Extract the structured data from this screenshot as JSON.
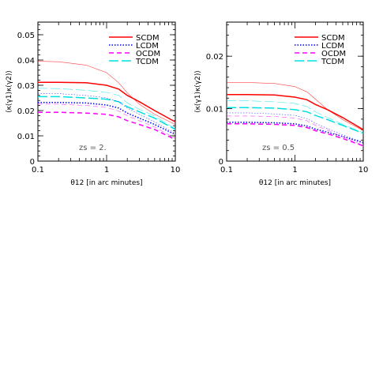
{
  "legend_entries": [
    {
      "label": "SCDM",
      "color": "#ff0000",
      "dash": "solid"
    },
    {
      "label": "LCDM",
      "color": "#0000ff",
      "dash": "dotted"
    },
    {
      "label": "OCDM",
      "color": "#ff00ff",
      "dash": "dashed"
    },
    {
      "label": "TCDM",
      "color": "#00e0e0",
      "dash": "longdash"
    }
  ],
  "chart_data": [
    {
      "type": "line",
      "xscale": "log",
      "xlim": [
        0.1,
        10
      ],
      "ylim": [
        0,
        0.055
      ],
      "xticks": [
        "0.1",
        "1",
        "10"
      ],
      "yticks": [
        "0",
        "0.01",
        "0.02",
        "0.03",
        "0.04",
        "0.05"
      ],
      "xlabel": "θ12 [in arc minutes]",
      "ylabel": "⟨κ(γ1)κ(γ2)⟩",
      "annotation": "zs = 2.",
      "x": [
        0.1,
        0.2,
        0.5,
        1,
        1.5,
        2,
        3,
        5,
        10
      ],
      "series": [
        {
          "name": "SCDM",
          "style": "thick",
          "values": [
            0.0312,
            0.0312,
            0.031,
            0.03,
            0.0285,
            0.026,
            0.0235,
            0.02,
            0.0155
          ]
        },
        {
          "name": "LCDM",
          "style": "thick",
          "values": [
            0.0232,
            0.0232,
            0.023,
            0.0222,
            0.021,
            0.019,
            0.017,
            0.0145,
            0.0105
          ]
        },
        {
          "name": "OCDM",
          "style": "thick",
          "values": [
            0.0193,
            0.0193,
            0.019,
            0.0185,
            0.0175,
            0.016,
            0.0145,
            0.0125,
            0.0085
          ]
        },
        {
          "name": "TCDM",
          "style": "thick",
          "values": [
            0.0255,
            0.0255,
            0.025,
            0.0245,
            0.0235,
            0.0215,
            0.0195,
            0.017,
            0.0125
          ]
        },
        {
          "name": "SCDM",
          "style": "thin",
          "values": [
            0.0395,
            0.0393,
            0.038,
            0.035,
            0.031,
            0.027,
            0.0225,
            0.0185,
            0.0145
          ]
        },
        {
          "name": "LCDM",
          "style": "thin",
          "values": [
            0.0268,
            0.0267,
            0.026,
            0.025,
            0.0235,
            0.021,
            0.0185,
            0.0155,
            0.011
          ]
        },
        {
          "name": "OCDM",
          "style": "thin",
          "values": [
            0.0226,
            0.0225,
            0.022,
            0.0212,
            0.0198,
            0.018,
            0.016,
            0.0135,
            0.009
          ]
        },
        {
          "name": "TCDM",
          "style": "thin",
          "values": [
            0.0288,
            0.0287,
            0.028,
            0.0272,
            0.026,
            0.023,
            0.0205,
            0.0178,
            0.0128
          ]
        }
      ]
    },
    {
      "type": "line",
      "xscale": "log",
      "xlim": [
        0.1,
        10
      ],
      "ylim": [
        0,
        0.0265
      ],
      "xticks": [
        "0.1",
        "1",
        "10"
      ],
      "yticks": [
        "0",
        "0.01",
        "0.02"
      ],
      "xlabel": "θ12 [in arc minutes]",
      "ylabel": "⟨κ(γ1)κ(γ2)⟩",
      "annotation": "zs = 0.5",
      "x": [
        0.1,
        0.2,
        0.5,
        1,
        1.5,
        2,
        3,
        5,
        10
      ],
      "series": [
        {
          "name": "SCDM",
          "style": "thick",
          "values": [
            0.0127,
            0.0127,
            0.0126,
            0.0122,
            0.0117,
            0.0108,
            0.0098,
            0.0083,
            0.006
          ]
        },
        {
          "name": "LCDM",
          "style": "thick",
          "values": [
            0.0074,
            0.0074,
            0.0073,
            0.0071,
            0.0067,
            0.0061,
            0.0055,
            0.0047,
            0.0035
          ]
        },
        {
          "name": "OCDM",
          "style": "thick",
          "values": [
            0.0071,
            0.0071,
            0.007,
            0.0068,
            0.0064,
            0.0058,
            0.0052,
            0.0043,
            0.0029
          ]
        },
        {
          "name": "TCDM",
          "style": "thick",
          "values": [
            0.0102,
            0.0102,
            0.0101,
            0.0098,
            0.0094,
            0.0087,
            0.0079,
            0.0068,
            0.0053
          ]
        },
        {
          "name": "SCDM",
          "style": "thin",
          "values": [
            0.015,
            0.015,
            0.0148,
            0.0142,
            0.0132,
            0.0118,
            0.0098,
            0.0079,
            0.0058
          ]
        },
        {
          "name": "LCDM",
          "style": "thin",
          "values": [
            0.0092,
            0.0092,
            0.009,
            0.0087,
            0.0081,
            0.0072,
            0.0062,
            0.005,
            0.0036
          ]
        },
        {
          "name": "OCDM",
          "style": "thin",
          "values": [
            0.0086,
            0.0086,
            0.0085,
            0.0082,
            0.0077,
            0.0068,
            0.0059,
            0.0046,
            0.003
          ]
        },
        {
          "name": "TCDM",
          "style": "thin",
          "values": [
            0.0115,
            0.0115,
            0.0113,
            0.011,
            0.0104,
            0.0094,
            0.0083,
            0.007,
            0.0054
          ]
        }
      ]
    }
  ]
}
